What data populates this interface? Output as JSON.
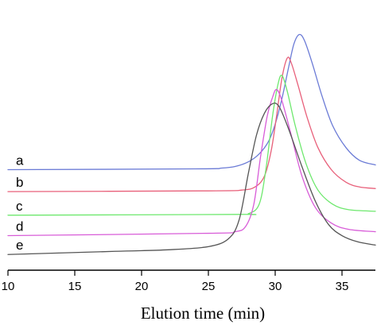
{
  "chart_data": {
    "type": "line",
    "xlabel": "Elution time (min)",
    "ylabel": "",
    "title": "",
    "xlim": [
      10,
      37.5
    ],
    "ylim": [
      0,
      1.72
    ],
    "xticks": [
      10,
      15,
      20,
      25,
      30,
      35
    ],
    "grid": false,
    "y_axis_visible": false,
    "series": [
      {
        "name": "a",
        "color": "#6b7bd6",
        "points": [
          [
            10,
            0.64
          ],
          [
            24,
            0.645
          ],
          [
            26,
            0.65
          ],
          [
            27,
            0.66
          ],
          [
            28,
            0.69
          ],
          [
            28.8,
            0.74
          ],
          [
            29.5,
            0.82
          ],
          [
            30,
            0.93
          ],
          [
            30.5,
            1.09
          ],
          [
            31,
            1.29
          ],
          [
            31.4,
            1.44
          ],
          [
            31.8,
            1.5
          ],
          [
            32.2,
            1.46
          ],
          [
            32.8,
            1.31
          ],
          [
            33.5,
            1.11
          ],
          [
            34.3,
            0.92
          ],
          [
            35.3,
            0.78
          ],
          [
            36.3,
            0.7
          ],
          [
            37.5,
            0.67
          ]
        ]
      },
      {
        "name": "b",
        "color": "#e8607a",
        "points": [
          [
            10,
            0.5
          ],
          [
            25,
            0.505
          ],
          [
            27.5,
            0.51
          ],
          [
            28.5,
            0.53
          ],
          [
            29.2,
            0.6
          ],
          [
            29.7,
            0.76
          ],
          [
            30.1,
            0.98
          ],
          [
            30.5,
            1.22
          ],
          [
            30.9,
            1.35
          ],
          [
            31.2,
            1.32
          ],
          [
            31.7,
            1.18
          ],
          [
            32.4,
            0.97
          ],
          [
            33.2,
            0.78
          ],
          [
            34.2,
            0.64
          ],
          [
            35.3,
            0.56
          ],
          [
            36.3,
            0.53
          ],
          [
            37.5,
            0.52
          ]
        ]
      },
      {
        "name": "c",
        "color": "#6ee86e",
        "points": [
          [
            10,
            0.35
          ],
          [
            27,
            0.355
          ],
          [
            28,
            0.36
          ],
          [
            28.8,
            0.42
          ],
          [
            29.3,
            0.64
          ],
          [
            29.8,
            0.98
          ],
          [
            30.2,
            1.18
          ],
          [
            30.5,
            1.24
          ],
          [
            30.9,
            1.14
          ],
          [
            31.5,
            0.92
          ],
          [
            32.3,
            0.68
          ],
          [
            33.2,
            0.51
          ],
          [
            34.3,
            0.42
          ],
          [
            35.5,
            0.385
          ],
          [
            37.5,
            0.375
          ]
        ]
      },
      {
        "name": "d",
        "color": "#d85cd8",
        "points": [
          [
            10,
            0.22
          ],
          [
            25,
            0.235
          ],
          [
            27,
            0.245
          ],
          [
            27.8,
            0.28
          ],
          [
            28.4,
            0.42
          ],
          [
            28.9,
            0.72
          ],
          [
            29.4,
            0.98
          ],
          [
            29.8,
            1.1
          ],
          [
            30.1,
            1.15
          ],
          [
            30.5,
            1.08
          ],
          [
            31.2,
            0.86
          ],
          [
            32,
            0.6
          ],
          [
            33,
            0.4
          ],
          [
            34.2,
            0.3
          ],
          [
            35.5,
            0.26
          ],
          [
            37.5,
            0.245
          ]
        ]
      },
      {
        "name": "e",
        "color": "#555555",
        "points": [
          [
            10,
            0.1
          ],
          [
            18,
            0.12
          ],
          [
            22,
            0.13
          ],
          [
            25,
            0.15
          ],
          [
            26.5,
            0.2
          ],
          [
            27.3,
            0.32
          ],
          [
            28,
            0.62
          ],
          [
            28.6,
            0.86
          ],
          [
            29.2,
            1.0
          ],
          [
            29.8,
            1.06
          ],
          [
            30.3,
            1.04
          ],
          [
            31,
            0.9
          ],
          [
            32,
            0.66
          ],
          [
            33,
            0.44
          ],
          [
            34,
            0.29
          ],
          [
            35,
            0.22
          ],
          [
            36.2,
            0.18
          ],
          [
            37.5,
            0.16
          ]
        ]
      }
    ]
  }
}
